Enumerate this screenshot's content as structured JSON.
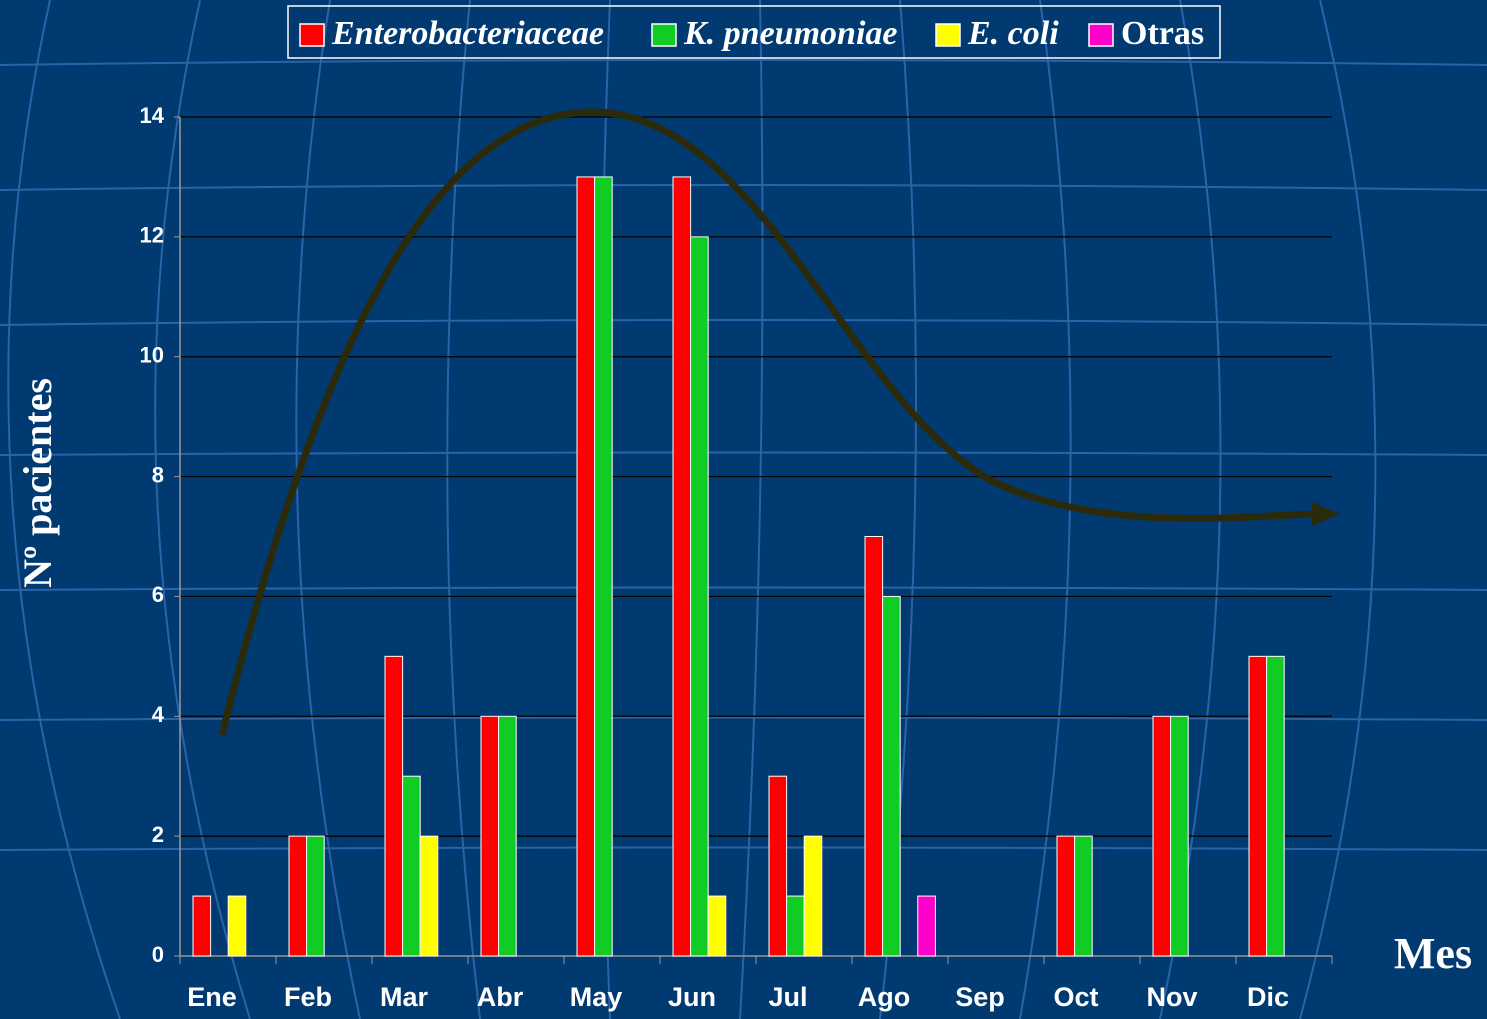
{
  "chart_data": {
    "type": "bar",
    "categories": [
      "Ene",
      "Feb",
      "Mar",
      "Abr",
      "May",
      "Jun",
      "Jul",
      "Ago",
      "Sep",
      "Oct",
      "Nov",
      "Dic"
    ],
    "series": [
      {
        "name": "Enterobacteriaceae",
        "color": "#ff0000",
        "values": [
          1,
          2,
          5,
          4,
          13,
          13,
          3,
          7,
          null,
          2,
          4,
          5
        ]
      },
      {
        "name": "K. pneumoniae",
        "color": "#11cc22",
        "values": [
          null,
          2,
          3,
          4,
          13,
          12,
          1,
          6,
          null,
          2,
          4,
          5
        ]
      },
      {
        "name": "E. coli",
        "color": "#ffff00",
        "values": [
          1,
          null,
          2,
          null,
          null,
          1,
          2,
          null,
          null,
          null,
          null,
          null
        ]
      },
      {
        "name": "Otras",
        "color": "#ff00cc",
        "values": [
          null,
          null,
          null,
          null,
          null,
          null,
          null,
          1,
          null,
          null,
          null,
          null
        ]
      }
    ],
    "y_label": "Nº pacientes",
    "x_label": "Mes",
    "ylim": [
      0,
      14
    ],
    "yticks": [
      0,
      2,
      4,
      6,
      8,
      10,
      12,
      14
    ],
    "grid": true
  }
}
